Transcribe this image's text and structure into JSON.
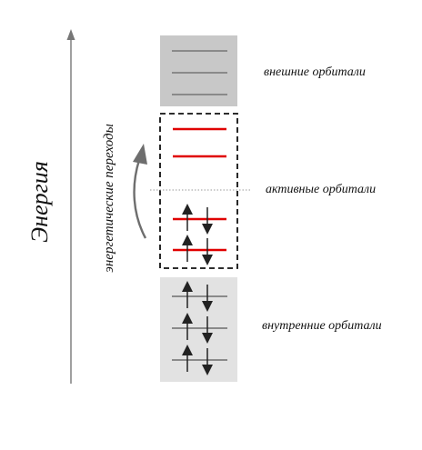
{
  "axis": {
    "label": "Энергия"
  },
  "transitions": {
    "label": "энергетические переходы"
  },
  "regions": {
    "outer": {
      "label": "внешние орбитали",
      "levels": 3
    },
    "active": {
      "label": "активные орбитали",
      "levels_empty": 2,
      "levels_filled": 2
    },
    "inner": {
      "label": "внутренние орбитали",
      "levels": 3
    }
  },
  "colors": {
    "outer_fill": "#c8c8c8",
    "inner_fill": "#e2e2e2",
    "gray_level": "#8a8a8a",
    "active_level": "#e00000",
    "arrow": "#222222",
    "axis": "#777777",
    "transition_arrow": "#6e6e6e"
  }
}
